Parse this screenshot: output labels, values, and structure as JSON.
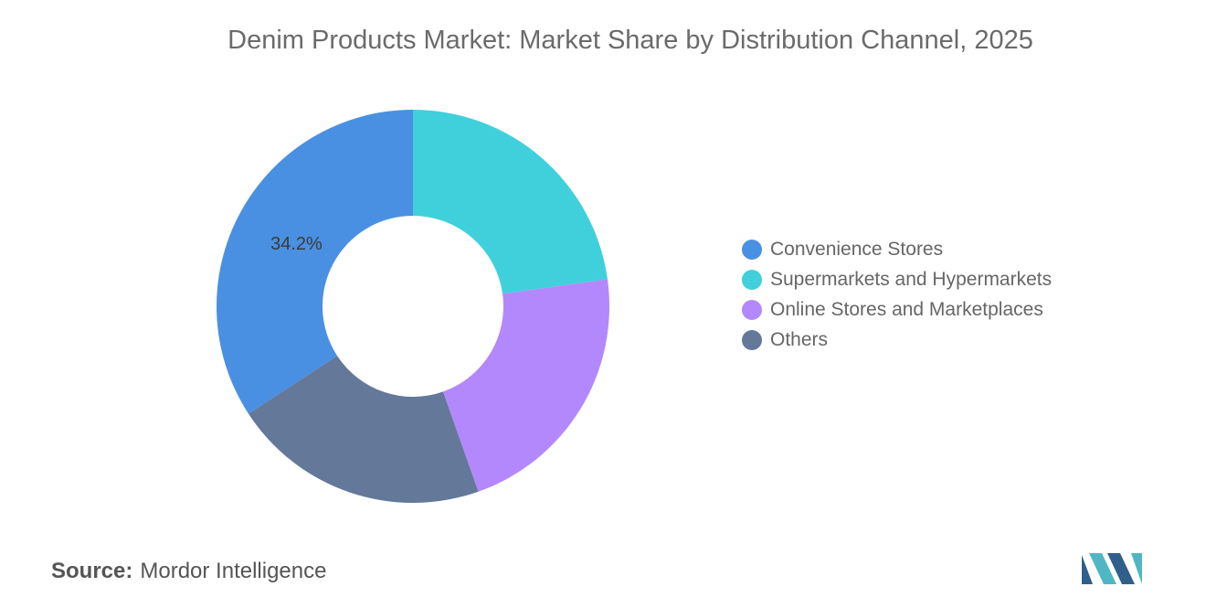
{
  "chart_data": {
    "type": "pie",
    "title": "Denim Products Market: Market Share by Distribution Channel, 2025",
    "donut": true,
    "categories": [
      "Convenience Stores",
      "Supermarkets and Hypermarkets",
      "Online Stores and Marketplaces",
      "Others"
    ],
    "values": [
      34.2,
      22.8,
      21.8,
      21.2
    ],
    "colors": [
      "#4a90e2",
      "#40d0dc",
      "#b388fc",
      "#64789a"
    ],
    "data_labels": [
      "34.2%",
      null,
      null,
      null
    ],
    "legend_position": "right"
  },
  "source": {
    "label": "Source:",
    "text": "Mordor Intelligence"
  },
  "logo": {
    "colors": [
      "#2f5f8a",
      "#4fb7c3"
    ]
  }
}
